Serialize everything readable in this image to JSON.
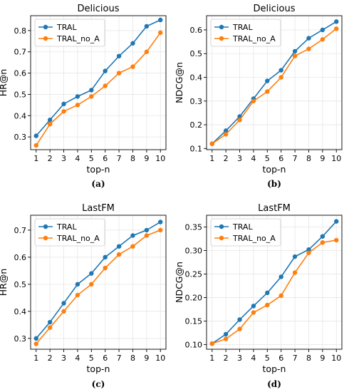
{
  "colors": {
    "series1": "#1f77b4",
    "series2": "#ff7f0e",
    "grid": "#e6e6e6",
    "axis": "#000000"
  },
  "chart_data": [
    {
      "type": "line",
      "title": "Delicious",
      "xlabel": "top-n",
      "ylabel": "HR@n",
      "caption": "(a)",
      "x": [
        1,
        2,
        3,
        4,
        5,
        6,
        7,
        8,
        9,
        10
      ],
      "xlim": [
        0.6,
        10.4
      ],
      "ylim": [
        0.24,
        0.87
      ],
      "yticks": [
        "0.3",
        "0.4",
        "0.5",
        "0.6",
        "0.7",
        "0.8"
      ],
      "legend": "top-left",
      "grid": true,
      "series": [
        {
          "name": "TRAL",
          "values": [
            0.305,
            0.38,
            0.455,
            0.49,
            0.52,
            0.61,
            0.68,
            0.74,
            0.82,
            0.85
          ]
        },
        {
          "name": "TRAL_no_A",
          "values": [
            0.26,
            0.36,
            0.42,
            0.45,
            0.49,
            0.54,
            0.6,
            0.63,
            0.7,
            0.79
          ]
        }
      ]
    },
    {
      "type": "line",
      "title": "Delicious",
      "xlabel": "top-n",
      "ylabel": "NDCG@n",
      "caption": "(b)",
      "x": [
        1,
        2,
        3,
        4,
        5,
        6,
        7,
        8,
        9,
        10
      ],
      "xlim": [
        0.6,
        10.4
      ],
      "ylim": [
        0.095,
        0.66
      ],
      "yticks": [
        "0.1",
        "0.2",
        "0.3",
        "0.4",
        "0.5",
        "0.6"
      ],
      "legend": "top-left",
      "grid": true,
      "series": [
        {
          "name": "TRAL",
          "values": [
            0.12,
            0.175,
            0.235,
            0.31,
            0.385,
            0.43,
            0.51,
            0.565,
            0.6,
            0.635
          ]
        },
        {
          "name": "TRAL_no_A",
          "values": [
            0.12,
            0.16,
            0.22,
            0.3,
            0.34,
            0.4,
            0.49,
            0.52,
            0.56,
            0.605
          ]
        }
      ]
    },
    {
      "type": "line",
      "title": "LastFM",
      "xlabel": "top-n",
      "ylabel": "HR@n",
      "caption": "(c)",
      "x": [
        1,
        2,
        3,
        4,
        5,
        6,
        7,
        8,
        9,
        10
      ],
      "xlim": [
        0.6,
        10.4
      ],
      "ylim": [
        0.26,
        0.755
      ],
      "yticks": [
        "0.3",
        "0.4",
        "0.5",
        "0.6",
        "0.7"
      ],
      "legend": "top-left",
      "grid": true,
      "series": [
        {
          "name": "TRAL",
          "values": [
            0.3,
            0.36,
            0.43,
            0.5,
            0.54,
            0.6,
            0.64,
            0.68,
            0.7,
            0.73
          ]
        },
        {
          "name": "TRAL_no_A",
          "values": [
            0.28,
            0.34,
            0.4,
            0.46,
            0.5,
            0.56,
            0.61,
            0.64,
            0.68,
            0.7
          ]
        }
      ]
    },
    {
      "type": "line",
      "title": "LastFM",
      "xlabel": "top-n",
      "ylabel": "NDCG@n",
      "caption": "(d)",
      "x": [
        1,
        2,
        3,
        4,
        5,
        6,
        7,
        8,
        9,
        10
      ],
      "xlim": [
        0.6,
        10.4
      ],
      "ylim": [
        0.09,
        0.375
      ],
      "yticks": [
        "0.10",
        "0.15",
        "0.20",
        "0.25",
        "0.30",
        "0.35"
      ],
      "legend": "top-left",
      "grid": true,
      "series": [
        {
          "name": "TRAL",
          "values": [
            0.102,
            0.122,
            0.153,
            0.182,
            0.21,
            0.244,
            0.287,
            0.302,
            0.33,
            0.362
          ]
        },
        {
          "name": "TRAL_no_A",
          "values": [
            0.102,
            0.112,
            0.133,
            0.168,
            0.184,
            0.204,
            0.253,
            0.295,
            0.317,
            0.322
          ]
        }
      ]
    }
  ]
}
